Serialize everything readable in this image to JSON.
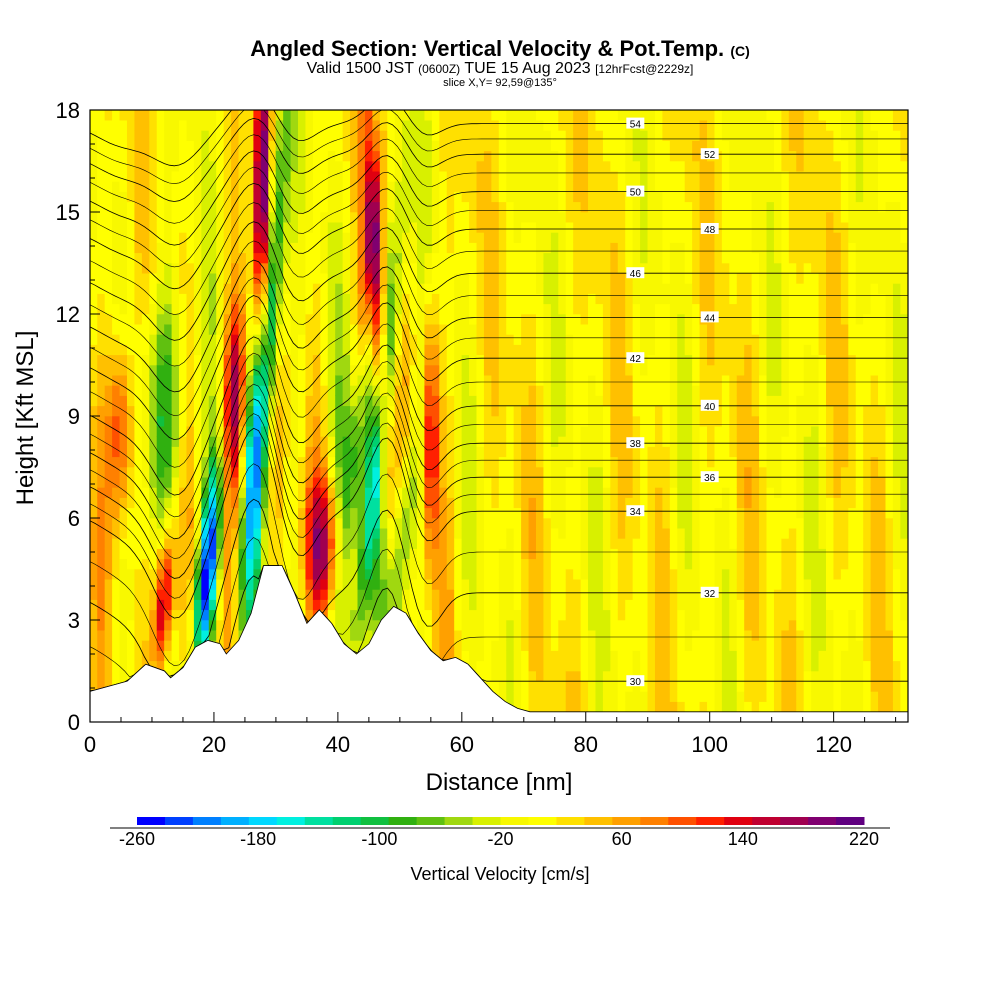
{
  "chart_data": {
    "type": "heatmap",
    "title": "Angled Section: Vertical Velocity & Pot.Temp.",
    "title_tag": "(C)",
    "subtitle_valid": "Valid 1500 JST",
    "subtitle_utc": "(0600Z)",
    "subtitle_date": "TUE 15 Aug 2023",
    "subtitle_fcst": "[12hrFcst@2229z]",
    "slice_label": "slice X,Y= 92,59@135°",
    "xlabel": "Distance [nm]",
    "ylabel": "Height [Kft MSL]",
    "xlim": [
      0,
      132
    ],
    "ylim": [
      0,
      18
    ],
    "x_ticks": [
      "0",
      "20",
      "40",
      "60",
      "80",
      "100",
      "120"
    ],
    "y_ticks": [
      "0",
      "3",
      "6",
      "9",
      "12",
      "15",
      "18"
    ],
    "colorbar": {
      "label": "Vertical Velocity [cm/s]",
      "range": [
        -260,
        220
      ],
      "tick_labels": [
        "-260",
        "-180",
        "-100",
        "-20",
        "60",
        "140",
        "220"
      ],
      "colors": [
        "#0000ff",
        "#0040ff",
        "#0080ff",
        "#00b0ff",
        "#00d8ff",
        "#00f0e0",
        "#00e0a0",
        "#00d070",
        "#10c040",
        "#30b010",
        "#60c010",
        "#a0d810",
        "#d8f000",
        "#f8f800",
        "#ffff00",
        "#ffe000",
        "#ffc000",
        "#ffa000",
        "#ff8000",
        "#ff5000",
        "#ff2000",
        "#e00010",
        "#c00030",
        "#a00050",
        "#800070",
        "#600080"
      ]
    },
    "theta_contour_labels": [
      "54",
      "52",
      "50",
      "48",
      "46",
      "44",
      "42",
      "40",
      "38",
      "36",
      "34",
      "32",
      "30"
    ],
    "notes": "Vertical velocity shaded field with potential temperature (C) contours; updraft/downdraft couplets over terrain between 10 and 60 nm; near-uniform weak values east of 65 nm."
  }
}
